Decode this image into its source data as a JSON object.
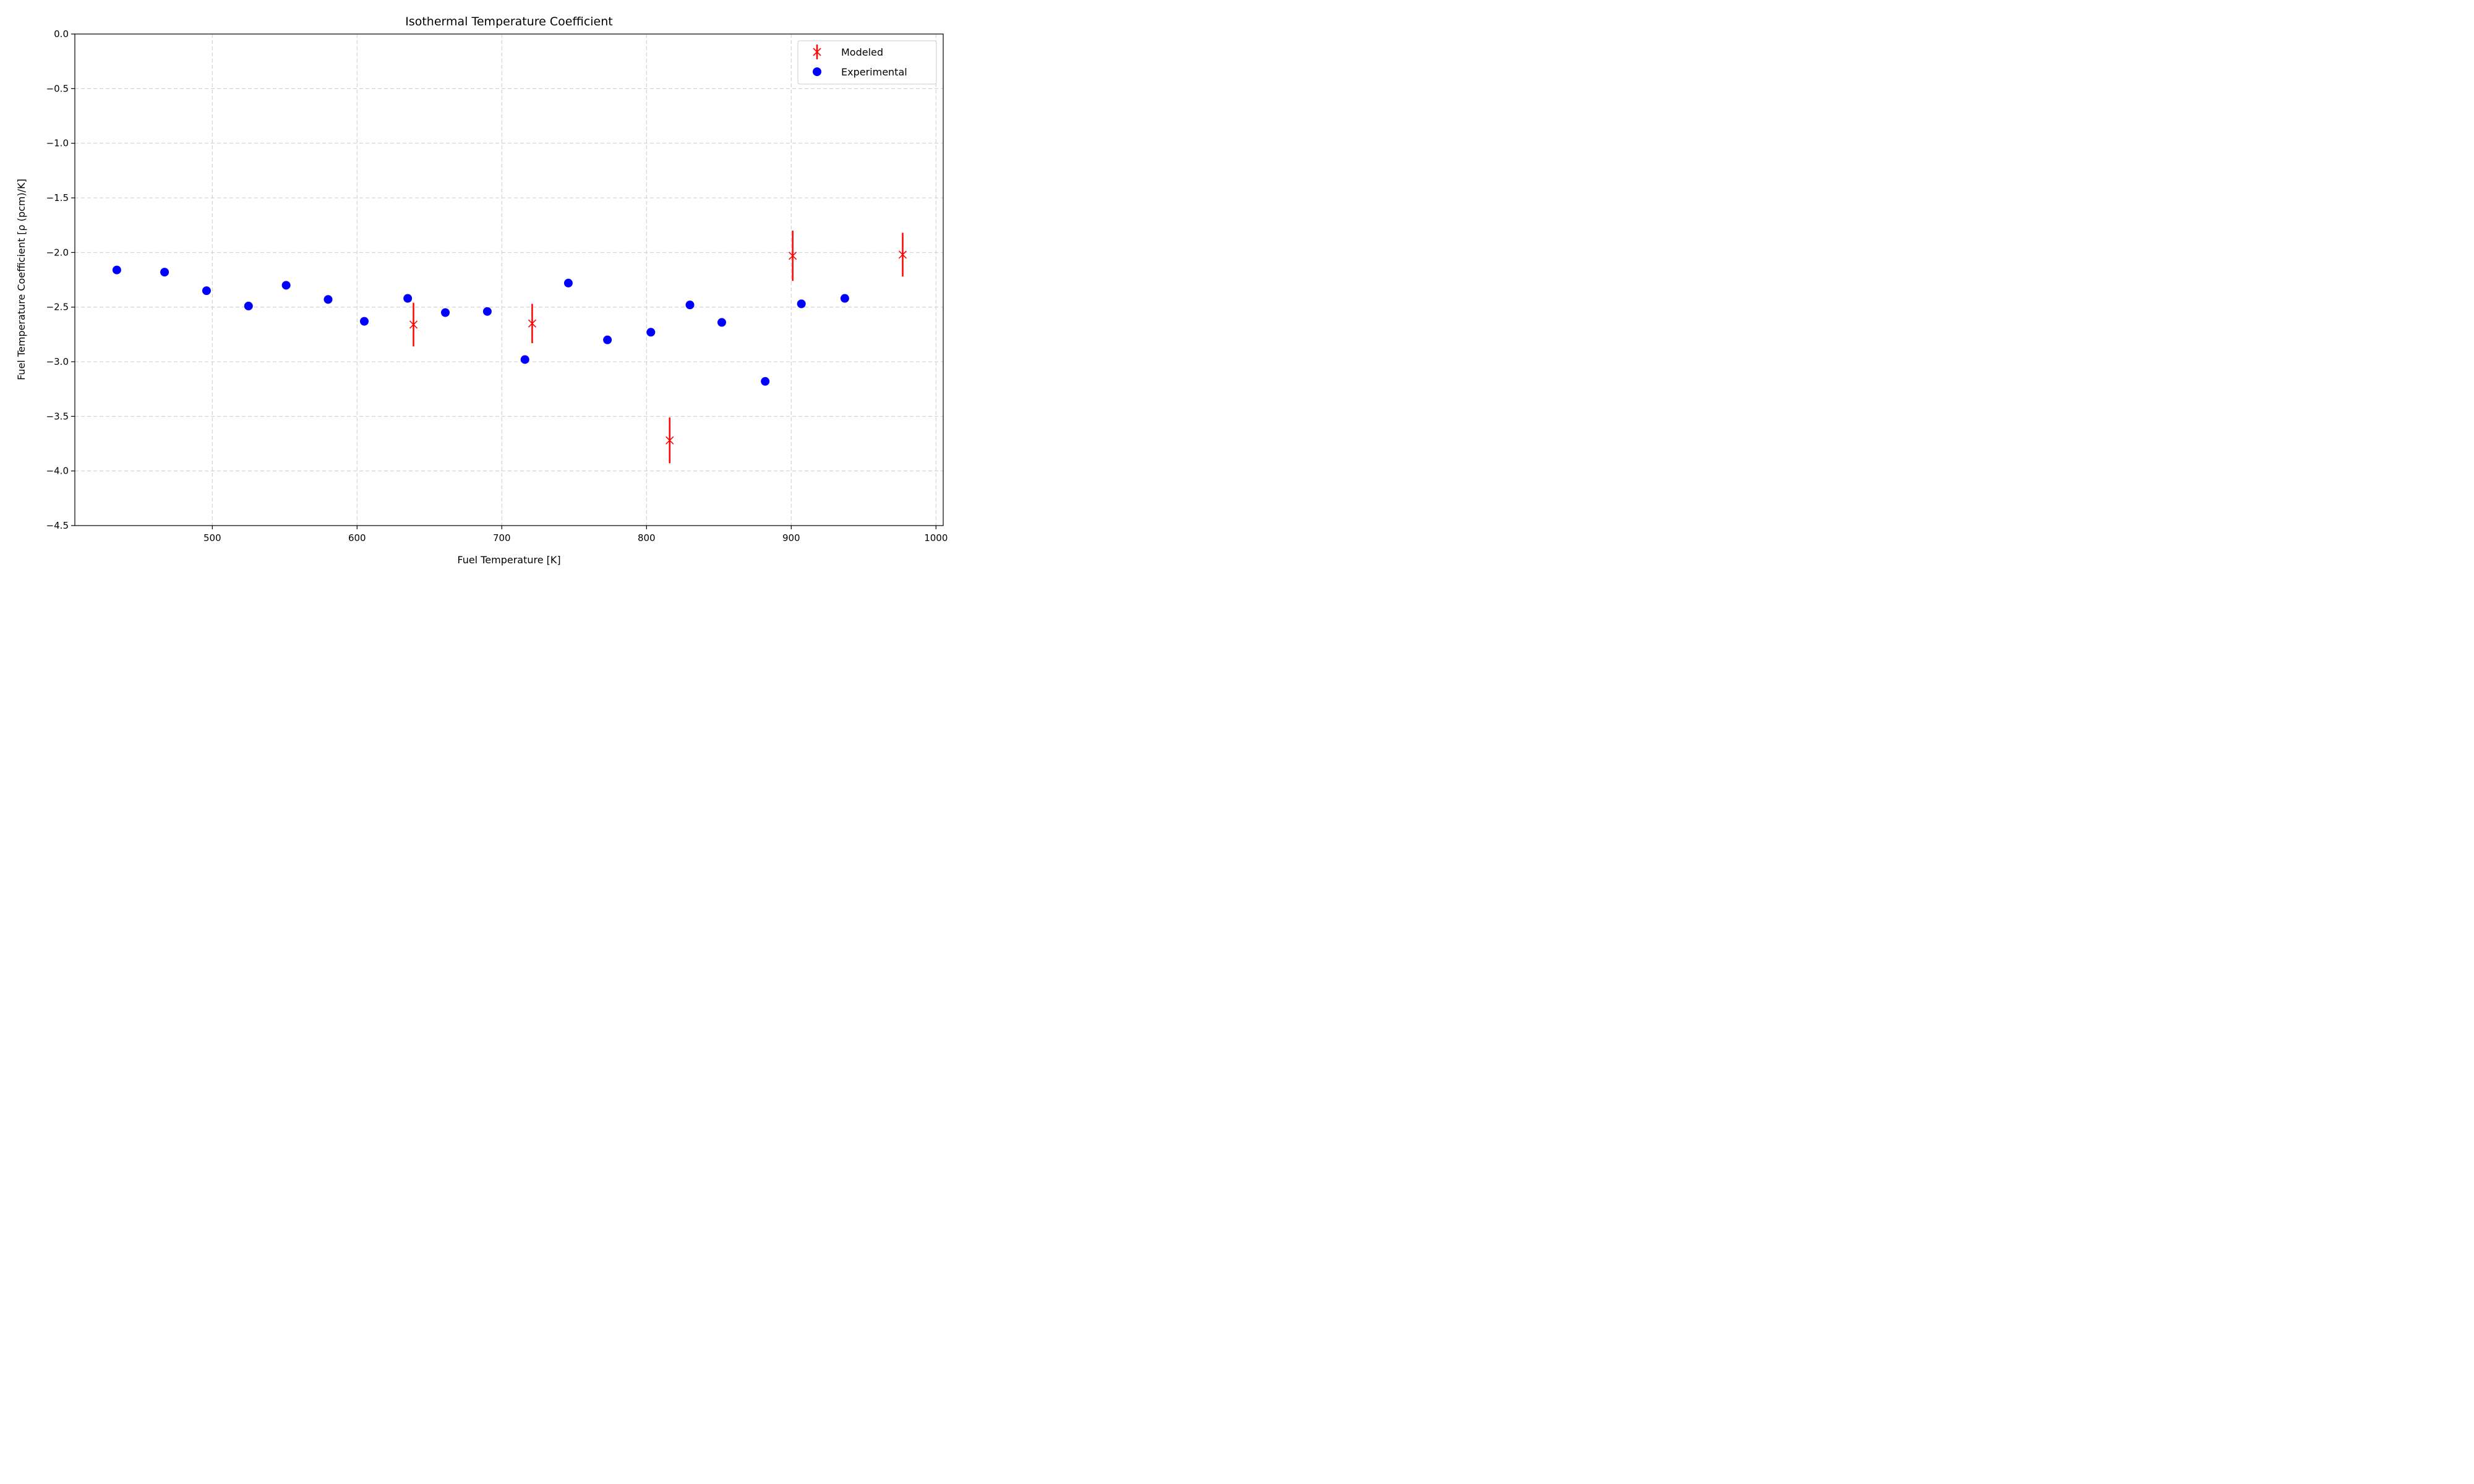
{
  "chart_data": {
    "type": "scatter",
    "title": "Isothermal Temperature Coefficient",
    "xlabel": "Fuel Temperature [K]",
    "ylabel": "Fuel Temperature Coefficient [ρ (pcm)/K]",
    "xlim": [
      405,
      1005
    ],
    "ylim": [
      -4.5,
      0.0
    ],
    "xticks": [
      500,
      600,
      700,
      800,
      900,
      1000
    ],
    "xtick_labels": [
      "500",
      "600",
      "700",
      "800",
      "900",
      "1000"
    ],
    "yticks": [
      0.0,
      -0.5,
      -1.0,
      -1.5,
      -2.0,
      -2.5,
      -3.0,
      -3.5,
      -4.0,
      -4.5
    ],
    "ytick_labels": [
      "0.0",
      "−0.5",
      "−1.0",
      "−1.5",
      "−2.0",
      "−2.5",
      "−3.0",
      "−3.5",
      "−4.0",
      "−4.5"
    ],
    "grid": true,
    "legend_position": "top-right",
    "series": [
      {
        "name": "Modeled",
        "color": "#ff0000",
        "marker": "x",
        "x": [
          639,
          721,
          816,
          901,
          977
        ],
        "y": [
          -2.66,
          -2.65,
          -3.72,
          -2.03,
          -2.02
        ],
        "yerr": [
          0.2,
          0.18,
          0.21,
          0.23,
          0.2
        ]
      },
      {
        "name": "Experimental",
        "color": "#0000ff",
        "marker": "o",
        "x": [
          434,
          467,
          496,
          525,
          551,
          580,
          605,
          635,
          661,
          690,
          716,
          746,
          773,
          803,
          830,
          852,
          882,
          907,
          937
        ],
        "y": [
          -2.16,
          -2.18,
          -2.35,
          -2.49,
          -2.3,
          -2.43,
          -2.63,
          -2.42,
          -2.55,
          -2.54,
          -2.98,
          -2.28,
          -2.8,
          -2.73,
          -2.48,
          -2.64,
          -3.18,
          -2.47,
          -2.42
        ]
      }
    ]
  }
}
